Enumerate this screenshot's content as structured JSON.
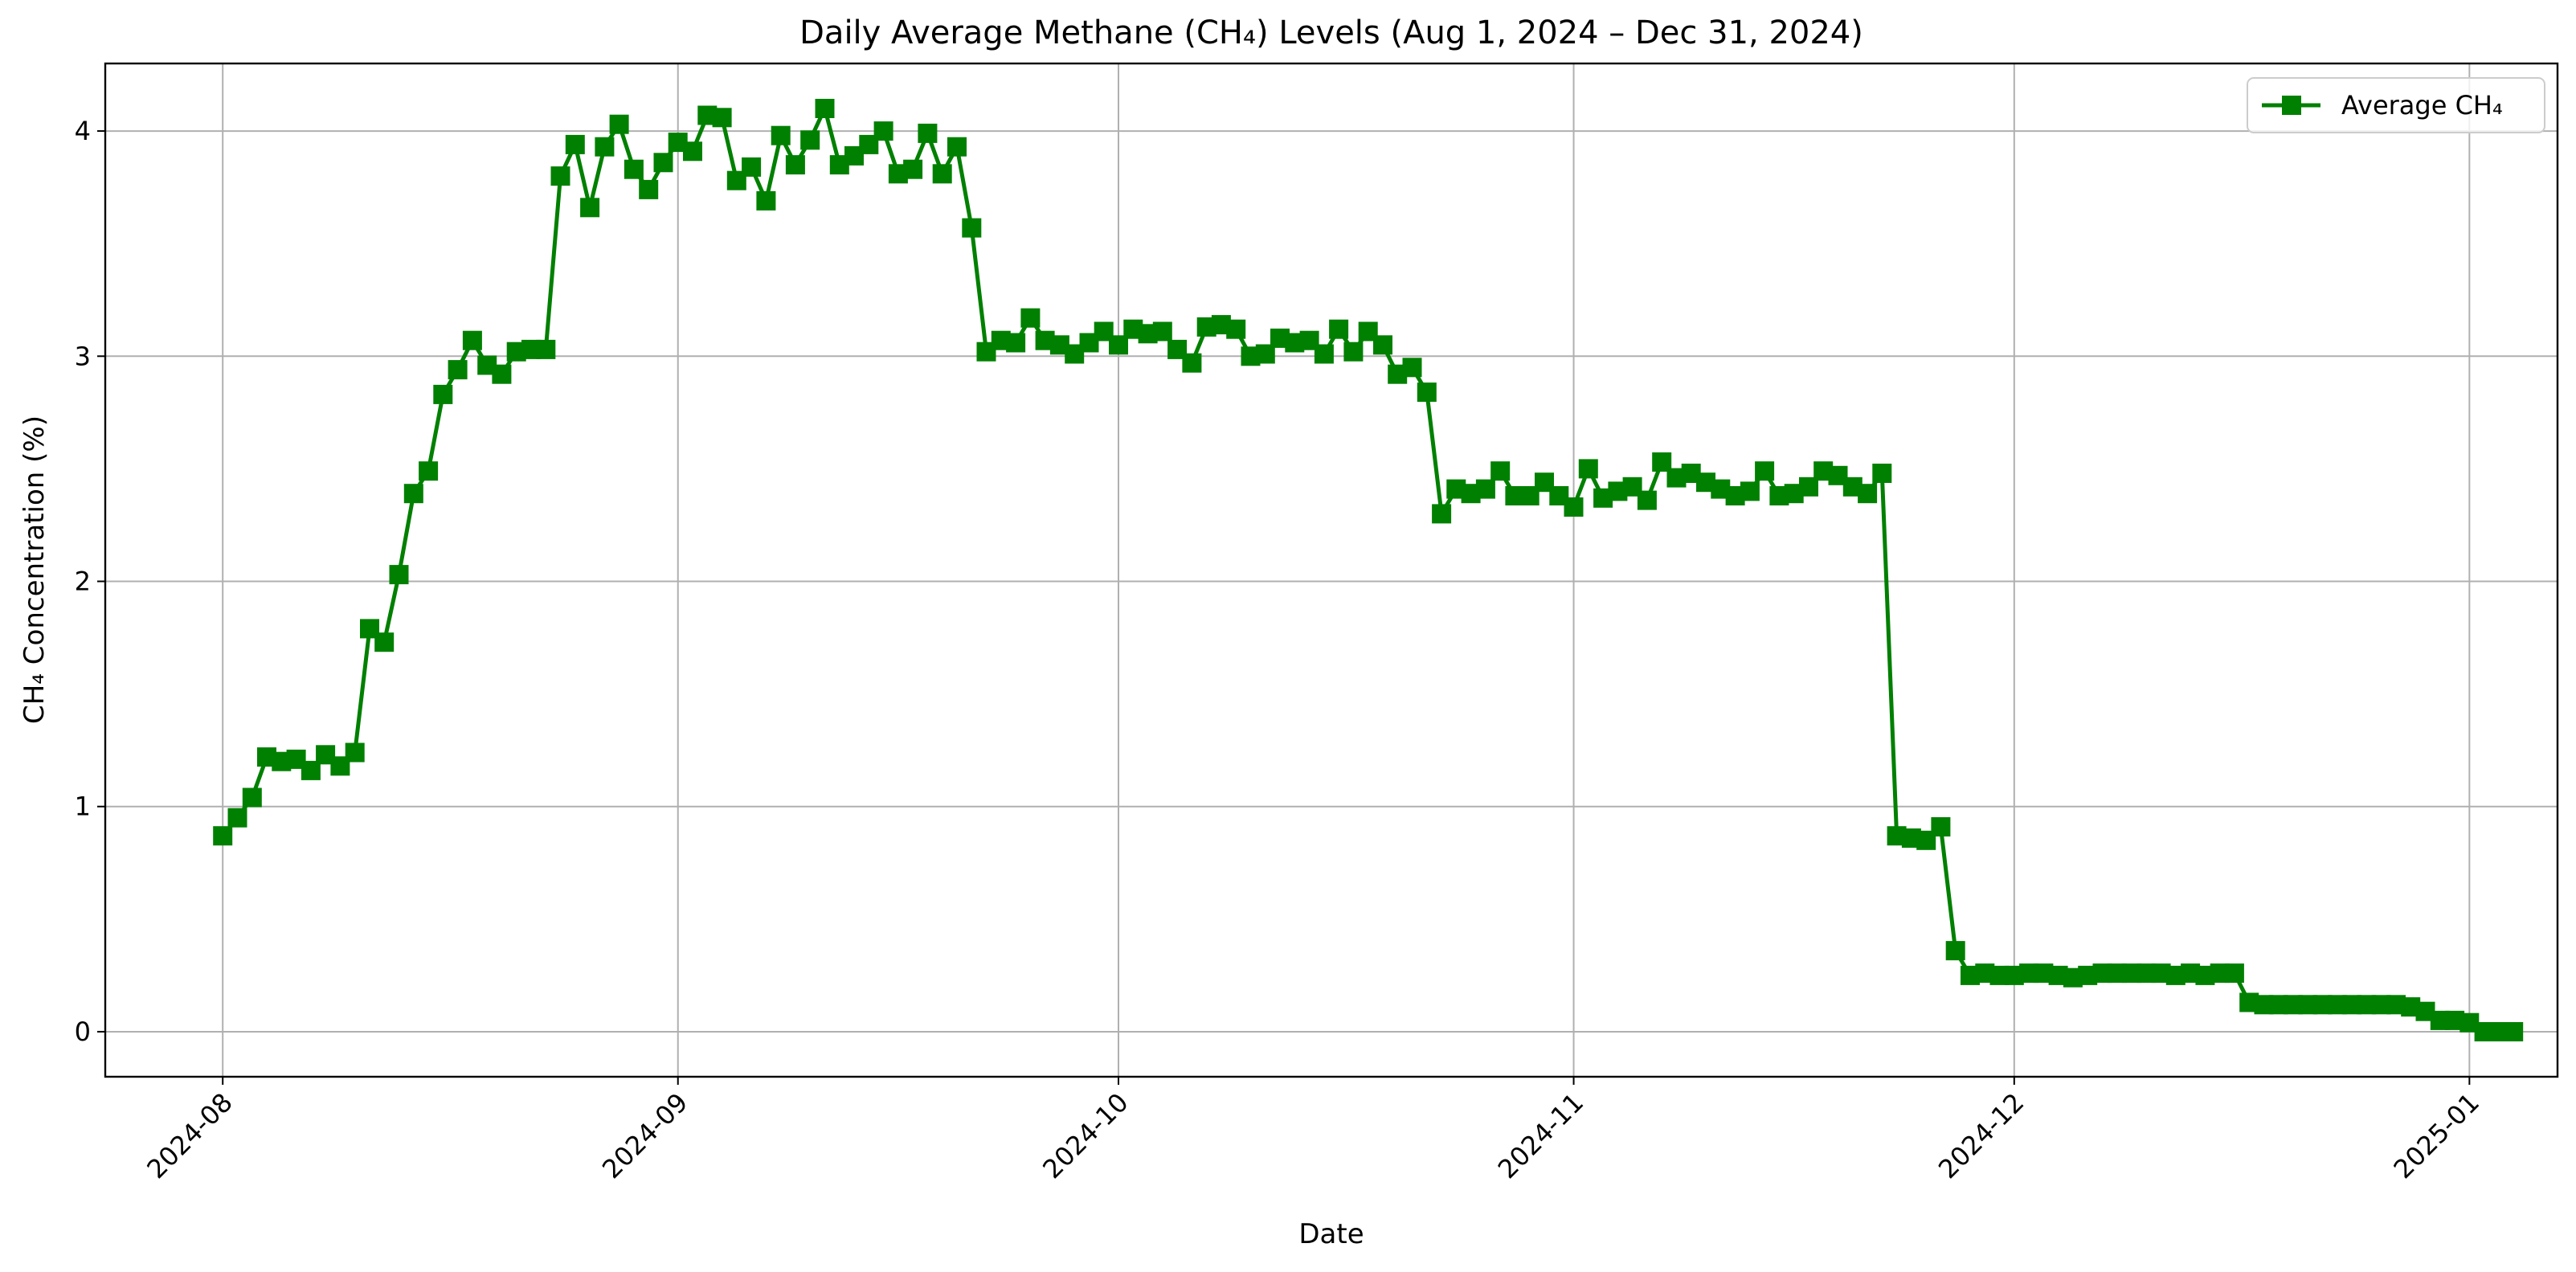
{
  "chart_data": {
    "type": "line",
    "title": "Daily Average Methane (CH₄) Levels (Aug 1, 2024 – Dec 31, 2024)",
    "xlabel": "Date",
    "ylabel": "CH₄ Concentration (%)",
    "xlim": [
      "2024-07-24",
      "2025-01-07"
    ],
    "ylim": [
      -0.2,
      4.3
    ],
    "x_ticks": [
      {
        "date": "2024-08-01",
        "label": "2024-08"
      },
      {
        "date": "2024-09-01",
        "label": "2024-09"
      },
      {
        "date": "2024-10-01",
        "label": "2024-10"
      },
      {
        "date": "2024-11-01",
        "label": "2024-11"
      },
      {
        "date": "2024-12-01",
        "label": "2024-12"
      },
      {
        "date": "2025-01-01",
        "label": "2025-01"
      }
    ],
    "y_ticks": [
      0,
      1,
      2,
      3,
      4
    ],
    "grid": true,
    "legend_position": "top-right",
    "series": [
      {
        "name": "Average CH₄",
        "color": "#008000",
        "marker": "square",
        "start_date": "2024-08-01",
        "values": [
          0.87,
          0.95,
          1.04,
          1.22,
          1.2,
          1.21,
          1.16,
          1.23,
          1.18,
          1.24,
          1.79,
          1.73,
          2.03,
          2.39,
          2.49,
          2.83,
          2.94,
          3.07,
          2.96,
          2.92,
          3.02,
          3.03,
          3.03,
          3.8,
          3.94,
          3.66,
          3.93,
          4.03,
          3.83,
          3.74,
          3.86,
          3.95,
          3.91,
          4.07,
          4.06,
          3.78,
          3.84,
          3.69,
          3.98,
          3.85,
          3.96,
          4.1,
          3.85,
          3.89,
          3.94,
          4.0,
          3.81,
          3.83,
          3.99,
          3.81,
          3.93,
          3.57,
          3.02,
          3.07,
          3.06,
          3.17,
          3.07,
          3.05,
          3.01,
          3.06,
          3.11,
          3.05,
          3.12,
          3.1,
          3.11,
          3.03,
          2.97,
          3.13,
          3.14,
          3.12,
          3.0,
          3.01,
          3.08,
          3.06,
          3.07,
          3.01,
          3.12,
          3.02,
          3.11,
          3.05,
          2.92,
          2.95,
          2.84,
          2.3,
          2.41,
          2.39,
          2.41,
          2.49,
          2.38,
          2.38,
          2.44,
          2.38,
          2.33,
          2.5,
          2.37,
          2.4,
          2.42,
          2.36,
          2.53,
          2.46,
          2.48,
          2.44,
          2.41,
          2.38,
          2.4,
          2.49,
          2.38,
          2.39,
          2.42,
          2.49,
          2.47,
          2.42,
          2.39,
          2.48,
          0.87,
          0.86,
          0.85,
          0.91,
          0.36,
          0.25,
          0.26,
          0.25,
          0.25,
          0.26,
          0.26,
          0.25,
          0.24,
          0.25,
          0.26,
          0.26,
          0.26,
          0.26,
          0.26,
          0.25,
          0.26,
          0.25,
          0.26,
          0.26,
          0.13,
          0.12,
          0.12,
          0.12,
          0.12,
          0.12,
          0.12,
          0.12,
          0.12,
          0.12,
          0.12,
          0.11,
          0.09,
          0.05,
          0.05,
          0.04,
          0.0,
          0.0,
          0.0
        ]
      }
    ]
  }
}
